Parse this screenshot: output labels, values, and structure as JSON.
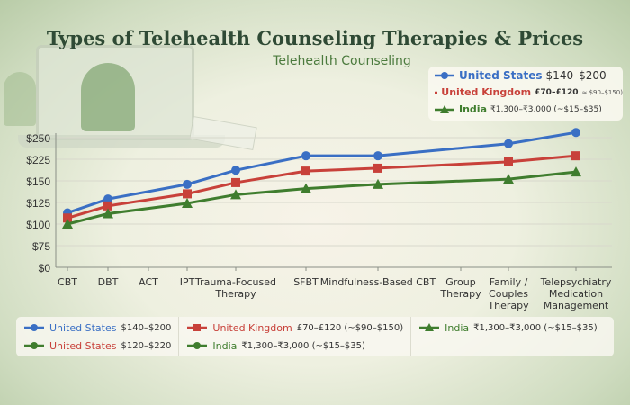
{
  "title": "Types of Telehealth Counseling Therapies & Prices",
  "subtitle": "Telehealth Counseling",
  "colors": {
    "us": "#3a6fc4",
    "uk": "#c8413a",
    "india": "#3f7d2e"
  },
  "top_legend": [
    {
      "series": "United States",
      "range": "$140–$200",
      "color": "#3a6fc4",
      "marker": "circle"
    },
    {
      "series": "United Kingdom",
      "range": "£70–£120",
      "note": "≈ $90–$150)",
      "color": "#c8413a",
      "marker": "square"
    },
    {
      "series": "India",
      "range": "₹1,300–₹3,000 (~$15–$35)",
      "color": "#3f7d2e",
      "marker": "triangle"
    }
  ],
  "bottom_legend": [
    [
      {
        "series": "United States",
        "range": "$140–$200",
        "color": "#3a6fc4",
        "text_color": "#3a6fc4",
        "marker": "circle"
      },
      {
        "series": "United States",
        "range": "$120–$220",
        "color": "#3f7d2e",
        "text_color": "#c8413a",
        "marker": "circle"
      }
    ],
    [
      {
        "series": "United Kingdom",
        "range": "£70–£120 (~$90–$150)",
        "color": "#c8413a",
        "text_color": "#c8413a",
        "marker": "square"
      },
      {
        "series": "India",
        "range": "₹1,300–₹3,000 (~$15–$35)",
        "color": "#3f7d2e",
        "text_color": "#3f7d2e",
        "marker": "circle"
      }
    ],
    [
      {
        "series": "India",
        "range": "₹1,300–₹3,000 (~$15–$35)",
        "color": "#3f7d2e",
        "text_color": "#3f7d2e",
        "marker": "triangle"
      }
    ]
  ],
  "chart_data": {
    "type": "line",
    "title": "Types of Telehealth Counseling Therapies & Prices",
    "subtitle": "Telehealth Counseling",
    "categories": [
      "CBT",
      "DBT",
      "ACT",
      "IPT",
      "Trauma-Focused Therapy",
      "SFBT",
      "Mindfulness-Based CBT",
      "Group Therapy",
      "Family / Couples Therapy",
      "Telepsychiatry Medication Management"
    ],
    "y_ticks": [
      "$0",
      "$75",
      "$100",
      "$125",
      "$150",
      "$225",
      "$250"
    ],
    "y_tick_values": [
      0,
      75,
      100,
      125,
      150,
      225,
      250
    ],
    "grid": true,
    "legend": "top-right and bottom",
    "series": [
      {
        "name": "United States",
        "color": "#3a6fc4",
        "marker": "circle",
        "points": [
          [
            "CBT",
            113
          ],
          [
            "DBT",
            129
          ],
          [
            "IPT",
            146
          ],
          [
            "Trauma-Focused Therapy",
            187
          ],
          [
            "SFBT",
            229
          ],
          [
            "Mindfulness-Based CBT",
            229
          ],
          [
            "Family / Couples Therapy",
            243
          ],
          [
            "Telepsychiatry Medication Management",
            256
          ]
        ]
      },
      {
        "name": "United Kingdom",
        "color": "#c8413a",
        "marker": "square",
        "points": [
          [
            "CBT",
            107
          ],
          [
            "DBT",
            121
          ],
          [
            "IPT",
            135
          ],
          [
            "Trauma-Focused Therapy",
            148
          ],
          [
            "SFBT",
            184
          ],
          [
            "Mindfulness-Based CBT",
            194
          ],
          [
            "Family / Couples Therapy",
            216
          ],
          [
            "Telepsychiatry Medication Management",
            229
          ]
        ]
      },
      {
        "name": "India",
        "color": "#3f7d2e",
        "marker": "triangle",
        "points": [
          [
            "CBT",
            100
          ],
          [
            "DBT",
            112
          ],
          [
            "IPT",
            124
          ],
          [
            "Trauma-Focused Therapy",
            134
          ],
          [
            "SFBT",
            141
          ],
          [
            "Mindfulness-Based CBT",
            146
          ],
          [
            "Family / Couples Therapy",
            156
          ],
          [
            "Telepsychiatry Medication Management",
            181
          ]
        ]
      }
    ]
  }
}
